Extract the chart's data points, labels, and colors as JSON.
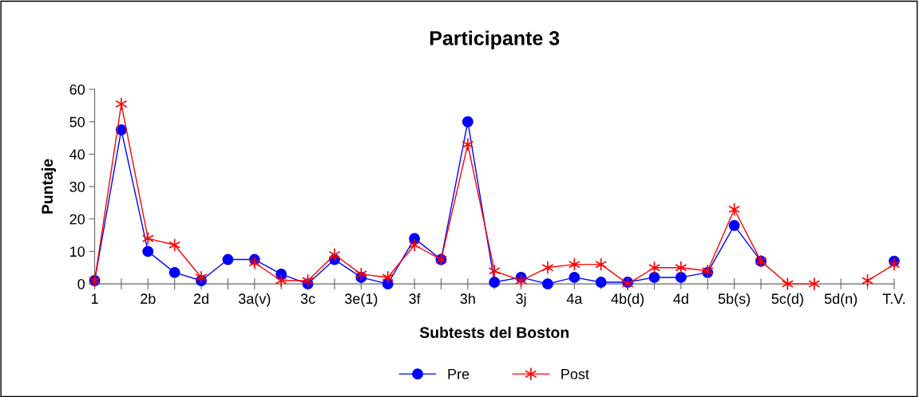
{
  "chart_data": {
    "type": "line",
    "title": "Participante 3",
    "xlabel": "Subtests del Boston",
    "ylabel": "Puntaje",
    "categories": [
      "1",
      null,
      "2b",
      null,
      "2d",
      null,
      "3a(v)",
      null,
      "3c",
      null,
      "3e(1)",
      null,
      "3f",
      null,
      "3h",
      null,
      "3j",
      null,
      "4a",
      null,
      "4b(d)",
      null,
      "4d",
      null,
      "5b(s)",
      null,
      "5c(d)",
      null,
      "5d(n)",
      null,
      "T.V."
    ],
    "ylim": [
      0,
      60
    ],
    "yticks": [
      0,
      10,
      20,
      30,
      40,
      50,
      60
    ],
    "grid": false,
    "legend": "bottom",
    "line_style": "solid",
    "series": [
      {
        "name": "Pre",
        "color": "#0000ff",
        "marker": "circle",
        "values": [
          1,
          47.5,
          10,
          3.5,
          1,
          7.5,
          7.5,
          3,
          0,
          7.5,
          2,
          0,
          14,
          7.5,
          50,
          0.5,
          2,
          0,
          2,
          0.5,
          0.5,
          2,
          2,
          3.5,
          18,
          7,
          null,
          null,
          null,
          null,
          7
        ]
      },
      {
        "name": "Post",
        "color": "#ff0000",
        "marker": "cross",
        "values": [
          1,
          55.5,
          14,
          12,
          2,
          null,
          6.5,
          1,
          1,
          9,
          3,
          2,
          12,
          7.5,
          43,
          4,
          1,
          5,
          6,
          6,
          0,
          5,
          5,
          4,
          23,
          7,
          0,
          0,
          null,
          1,
          6
        ]
      }
    ]
  }
}
